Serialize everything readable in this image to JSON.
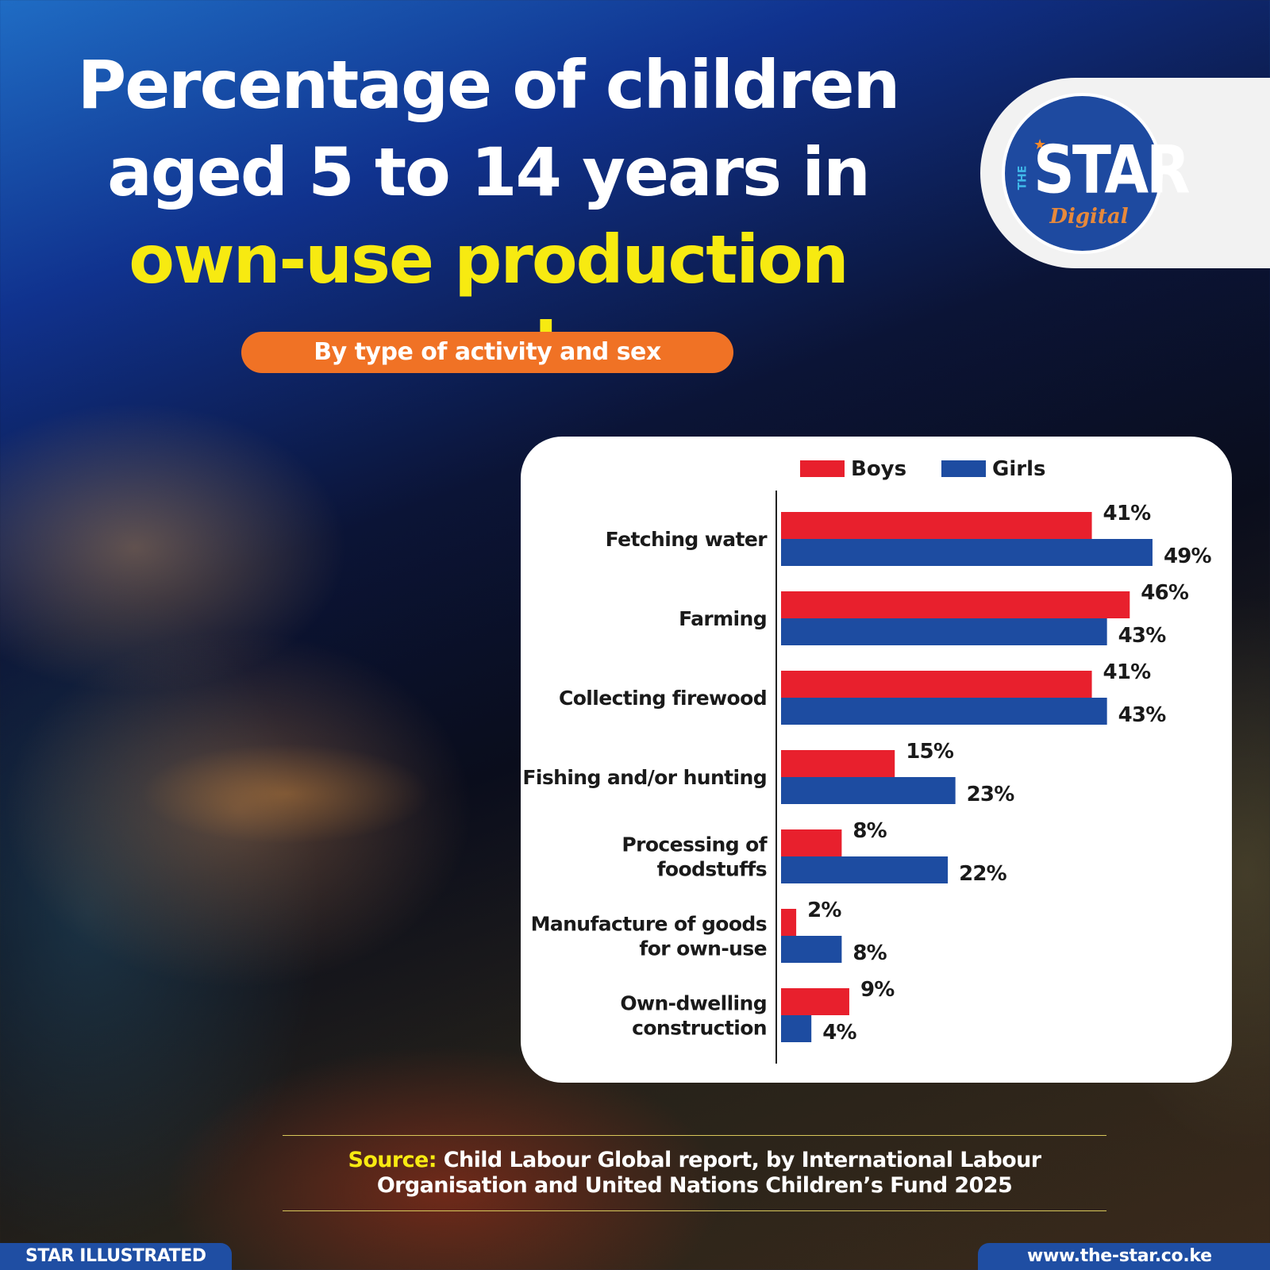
{
  "headline": {
    "line1": "Percentage of children",
    "line2": "aged 5 to 14 years in",
    "line3": "own-use production work"
  },
  "subtitle": "By type of activity and sex",
  "brand": {
    "logo_the": "THE",
    "logo_star": "STAR",
    "logo_digital": "Digital",
    "footer_left": "STAR ILLUSTRATED",
    "footer_right": "www.the-star.co.ke"
  },
  "source": {
    "label": "Source:",
    "text": "Child Labour Global report, by International Labour Organisation and United Nations Children’s Fund 2025"
  },
  "colors": {
    "boys": "#e8202d",
    "girls": "#1d4ca1",
    "highlight": "#f7ea11",
    "pill": "#f07225"
  },
  "chart_data": {
    "type": "bar",
    "orientation": "horizontal",
    "title": "Percentage of children aged 5 to 14 years in own-use production work",
    "subtitle": "By type of activity and sex",
    "categories": [
      [
        "Fetching water"
      ],
      [
        "Farming"
      ],
      [
        "Collecting firewood"
      ],
      [
        "Fishing and/or hunting"
      ],
      [
        "Processing of",
        "foodstuffs"
      ],
      [
        "Manufacture of goods",
        "for own-use"
      ],
      [
        "Own-dwelling",
        "construction"
      ]
    ],
    "series": [
      {
        "name": "Boys",
        "values": [
          41,
          46,
          41,
          15,
          8,
          2,
          9
        ],
        "labels": [
          "41%",
          "46%",
          "41%",
          "15%",
          "8%",
          "2%",
          "9%"
        ]
      },
      {
        "name": "Girls",
        "values": [
          49,
          43,
          43,
          23,
          22,
          8,
          4
        ],
        "labels": [
          "49%",
          "43%",
          "43%",
          "23%",
          "22%",
          "8%",
          "4%"
        ]
      }
    ],
    "unit": "%",
    "legend_position": "top",
    "grid": false
  }
}
